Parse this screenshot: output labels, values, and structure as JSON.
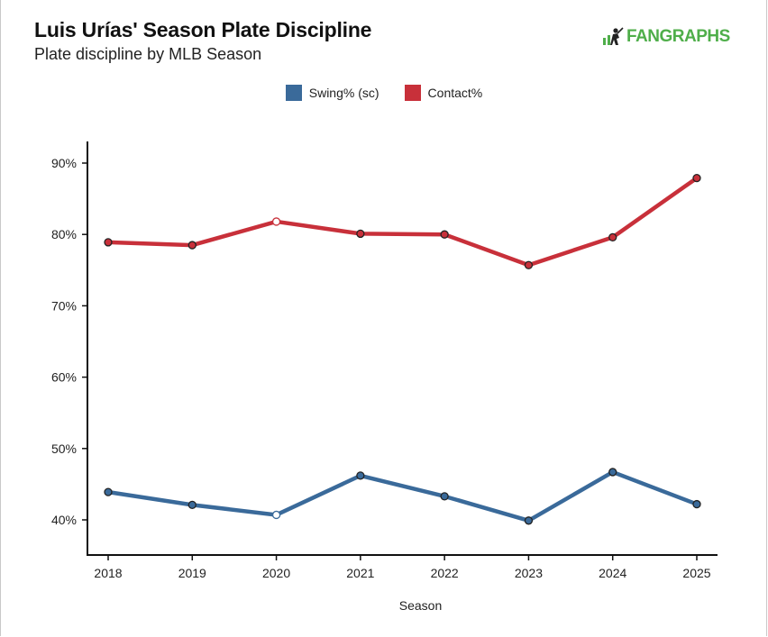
{
  "header": {
    "title": "Luis Urías' Season Plate Discipline",
    "subtitle": "Plate discipline by MLB Season",
    "brand": "FANGRAPHS",
    "brand_color": "#4fae4a"
  },
  "chart_data": {
    "type": "line",
    "title": "Luis Urías' Season Plate Discipline",
    "subtitle": "Plate discipline by MLB Season",
    "xlabel": "Season",
    "ylabel": "",
    "x": [
      "2018",
      "2019",
      "2020",
      "2021",
      "2022",
      "2023",
      "2024",
      "2025"
    ],
    "ylim": [
      35,
      93
    ],
    "yticks": [
      40,
      50,
      60,
      70,
      80,
      90
    ],
    "ytick_labels": [
      "40%",
      "50%",
      "60%",
      "70%",
      "80%",
      "90%"
    ],
    "grid": false,
    "legend_position": "top-center",
    "series": [
      {
        "name": "Swing% (sc)",
        "color": "#3a6a9a",
        "values": [
          43.9,
          42.1,
          40.7,
          46.2,
          43.3,
          39.9,
          46.7,
          42.2
        ],
        "open_markers": [
          "2020"
        ]
      },
      {
        "name": "Contact%",
        "color": "#c8303a",
        "values": [
          78.9,
          78.5,
          81.8,
          80.1,
          80.0,
          75.7,
          79.6,
          87.9
        ],
        "open_markers": [
          "2020"
        ]
      }
    ]
  }
}
